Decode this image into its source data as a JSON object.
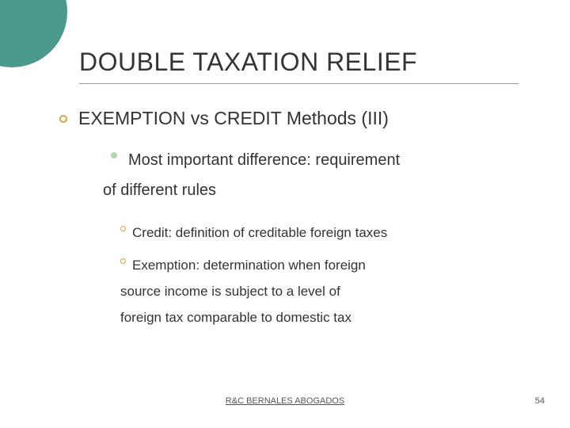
{
  "title": "DOUBLE TAXATION RELIEF",
  "subtitle": "EXEMPTION vs CREDIT Methods (III)",
  "point_line1": "Most important difference: requirement",
  "point_line2": "of different rules",
  "sub1": "Credit: definition of creditable foreign taxes",
  "sub2_line1": "Exemption: determination when foreign",
  "sub2_line2": "source income is subject to a level of",
  "sub2_line3": "foreign tax comparable to domestic tax",
  "footer": "R&C BERNALES ABOGADOS",
  "page": "54",
  "colors": {
    "accent_circle": "#4a9b8e",
    "bullet_ring": "#d4a53a",
    "bullet_disc": "#b8d4a8",
    "text": "#333333",
    "underline": "#999999",
    "background": "#ffffff"
  },
  "fonts": {
    "title_size": 32,
    "level1_size": 23,
    "level2_size": 20,
    "level3_size": 17,
    "footer_size": 11
  }
}
